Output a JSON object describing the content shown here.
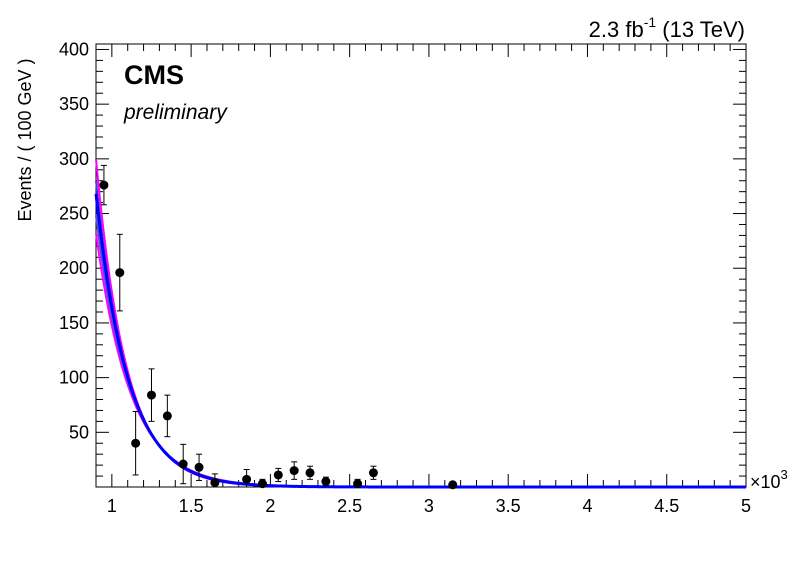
{
  "chart_data": {
    "type": "scatter",
    "experiment": "CMS",
    "status": "preliminary",
    "lumi_prefix": "2.3 fb",
    "lumi_exponent": "-1",
    "lumi_suffix": " (13 TeV)",
    "xlabel": "",
    "ylabel": "Events / ( 100 GeV )",
    "x_multiplier_base": "×10",
    "x_multiplier_exp": "3",
    "xlim": [
      0.9,
      5.0
    ],
    "ylim": [
      0,
      405
    ],
    "x_ticks": [
      {
        "value": 1,
        "label": "1"
      },
      {
        "value": 1.5,
        "label": "1.5"
      },
      {
        "value": 2,
        "label": "2"
      },
      {
        "value": 2.5,
        "label": "2.5"
      },
      {
        "value": 3,
        "label": "3"
      },
      {
        "value": 3.5,
        "label": "3.5"
      },
      {
        "value": 4,
        "label": "4"
      },
      {
        "value": 4.5,
        "label": "4.5"
      },
      {
        "value": 5,
        "label": "5"
      }
    ],
    "y_ticks": [
      {
        "value": 50,
        "label": "50"
      },
      {
        "value": 100,
        "label": "100"
      },
      {
        "value": 150,
        "label": "150"
      },
      {
        "value": 200,
        "label": "200"
      },
      {
        "value": 250,
        "label": "250"
      },
      {
        "value": 300,
        "label": "300"
      },
      {
        "value": 350,
        "label": "350"
      },
      {
        "value": 400,
        "label": "400"
      }
    ],
    "data_points": [
      {
        "x": 0.95,
        "y": 276,
        "err": 18
      },
      {
        "x": 1.05,
        "y": 196,
        "err": 35
      },
      {
        "x": 1.15,
        "y": 40,
        "err": 29
      },
      {
        "x": 1.25,
        "y": 84,
        "err": 24
      },
      {
        "x": 1.35,
        "y": 65,
        "err": 19
      },
      {
        "x": 1.45,
        "y": 21,
        "err": 18
      },
      {
        "x": 1.55,
        "y": 18,
        "err": 12
      },
      {
        "x": 1.65,
        "y": 4,
        "err": 8
      },
      {
        "x": 1.85,
        "y": 7,
        "err": 9
      },
      {
        "x": 1.95,
        "y": 3,
        "err": 4
      },
      {
        "x": 2.05,
        "y": 11,
        "err": 6
      },
      {
        "x": 2.15,
        "y": 15,
        "err": 8
      },
      {
        "x": 2.25,
        "y": 13,
        "err": 6
      },
      {
        "x": 2.35,
        "y": 5,
        "err": 4
      },
      {
        "x": 2.55,
        "y": 3,
        "err": 4
      },
      {
        "x": 2.65,
        "y": 13,
        "err": 6
      },
      {
        "x": 3.15,
        "y": 2,
        "err": 2
      }
    ],
    "fit_curves": [
      {
        "color": "#ff00ff",
        "A": 300,
        "k": 5.2,
        "width": 2
      },
      {
        "color": "#ff00ff",
        "A": 232,
        "k": 4.55,
        "width": 2
      },
      {
        "color": "#4a39d8",
        "A": 280,
        "k": 5.05,
        "width": 2
      },
      {
        "color": "#5a48e0",
        "A": 248,
        "k": 4.7,
        "width": 2
      },
      {
        "color": "#0000ff",
        "A": 268,
        "k": 4.9,
        "width": 3
      }
    ],
    "grid": false,
    "colors": {
      "data": "#000000",
      "fit_nominal": "#0000ff",
      "fit_band": "#ff00ff"
    }
  }
}
